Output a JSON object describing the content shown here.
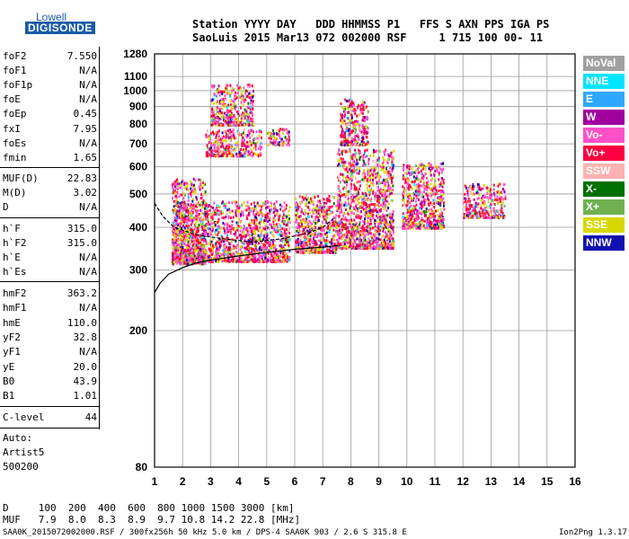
{
  "logo": {
    "line1": "Lowell",
    "line2": "DIGISONDE"
  },
  "header": {
    "line1": "Station YYYY DAY   DDD HHMMSS P1   FFS S AXN PPS IGA PS",
    "line2": "SaoLuis 2015 Mar13 072 002000 RSF     1 715 100 00- 11"
  },
  "params": [
    {
      "label": "foF2",
      "value": "7.550"
    },
    {
      "label": "foF1",
      "value": "N/A"
    },
    {
      "label": "foF1p",
      "value": "N/A"
    },
    {
      "label": "foE",
      "value": "N/A"
    },
    {
      "label": "foEp",
      "value": "0.45"
    },
    {
      "label": "fxI",
      "value": "7.95"
    },
    {
      "label": "foEs",
      "value": "N/A"
    },
    {
      "label": "fmin",
      "value": "1.65"
    },
    {
      "label": "MUF(D)",
      "value": "22.83"
    },
    {
      "label": "M(D)",
      "value": "3.02"
    },
    {
      "label": "D",
      "value": "N/A"
    },
    {
      "label": "h`F",
      "value": "315.0"
    },
    {
      "label": "h`F2",
      "value": "315.0"
    },
    {
      "label": "h`E",
      "value": "N/A"
    },
    {
      "label": "h`Es",
      "value": "N/A"
    },
    {
      "label": "hmF2",
      "value": "363.2"
    },
    {
      "label": "hmF1",
      "value": "N/A"
    },
    {
      "label": "hmE",
      "value": "110.0"
    },
    {
      "label": "yF2",
      "value": "32.8"
    },
    {
      "label": "yF1",
      "value": "N/A"
    },
    {
      "label": "yE",
      "value": "20.0"
    },
    {
      "label": "B0",
      "value": "43.9"
    },
    {
      "label": "B1",
      "value": "1.01"
    },
    {
      "label": "C-level",
      "value": "44"
    }
  ],
  "auto": {
    "line1": "Auto:",
    "line2": "Artist5",
    "line3": "500200"
  },
  "legend": [
    {
      "label": "NoVal",
      "bg": "#a0a0a0",
      "fg": "#ffffff"
    },
    {
      "label": "NNE",
      "bg": "#00e5ff",
      "fg": "#ffffff"
    },
    {
      "label": "E",
      "bg": "#2ea8ff",
      "fg": "#ffffff"
    },
    {
      "label": "W",
      "bg": "#a000a0",
      "fg": "#ffffff"
    },
    {
      "label": "Vo-",
      "bg": "#ff50c8",
      "fg": "#ffffff"
    },
    {
      "label": "Vo+",
      "bg": "#ff0040",
      "fg": "#ffffff"
    },
    {
      "label": "SSW",
      "bg": "#ffb0b0",
      "fg": "#ffffff"
    },
    {
      "label": "X-",
      "bg": "#007000",
      "fg": "#ffffff"
    },
    {
      "label": "X+",
      "bg": "#70b050",
      "fg": "#ffffff"
    },
    {
      "label": "SSE",
      "bg": "#d8d800",
      "fg": "#ffffff"
    },
    {
      "label": "NNW",
      "bg": "#1010b0",
      "fg": "#ffffff"
    }
  ],
  "bottom": {
    "d_row": "D     100  200  400  600  800 1000 1500 3000 [km]",
    "muf_row": "MUF   7.9  8.0  8.3  8.9  9.7 10.8 14.2 22.8 [MHz]",
    "footer_left": "SAA0K_2015072002000.RSF / 300fx256h 50 kHz 5.0 km / DPS-4 SAA0K 903 / 2.6 S 315.8 E",
    "footer_right": "Ion2Png 1.3.17"
  },
  "chart_data": {
    "type": "scatter",
    "xlabel": "",
    "ylabel": "",
    "xlim": [
      1,
      16
    ],
    "ylim": [
      80,
      1280
    ],
    "y_scale": "log",
    "x_ticks": [
      1,
      2,
      3,
      4,
      5,
      6,
      7,
      8,
      9,
      10,
      11,
      12,
      13,
      14,
      15,
      16
    ],
    "y_ticks": [
      80,
      200,
      300,
      400,
      500,
      600,
      700,
      800,
      900,
      1000,
      1100,
      1280
    ],
    "grid": true,
    "traces": [
      {
        "name": "O-trace virtual height (h'f)",
        "x": [
          1.0,
          1.2,
          1.5,
          2.0,
          2.5,
          3.0,
          4.0,
          5.0,
          6.0,
          7.0,
          7.55
        ],
        "y": [
          258,
          275,
          292,
          305,
          315,
          321,
          330,
          338,
          345,
          350,
          354
        ]
      },
      {
        "name": "Model profile",
        "x": [
          1.0,
          1.3,
          1.7,
          2.5,
          3.5,
          4.5,
          5.5,
          6.5,
          7.0,
          7.4
        ],
        "y": [
          470,
          430,
          400,
          380,
          370,
          362,
          370,
          385,
          400,
          425
        ]
      }
    ],
    "clusters": [
      {
        "x": [
          1.6,
          5.8
        ],
        "y": [
          320,
          480
        ]
      },
      {
        "x": [
          1.6,
          2.8
        ],
        "y": [
          315,
          560
        ]
      },
      {
        "x": [
          2.8,
          4.8
        ],
        "y": [
          650,
          780
        ]
      },
      {
        "x": [
          5.0,
          5.8
        ],
        "y": [
          700,
          780
        ]
      },
      {
        "x": [
          3.0,
          4.5
        ],
        "y": [
          800,
          1050
        ]
      },
      {
        "x": [
          6.0,
          7.5
        ],
        "y": [
          340,
          500
        ]
      },
      {
        "x": [
          7.5,
          9.5
        ],
        "y": [
          350,
          680
        ]
      },
      {
        "x": [
          7.6,
          8.6
        ],
        "y": [
          700,
          950
        ]
      },
      {
        "x": [
          9.8,
          11.3
        ],
        "y": [
          400,
          620
        ]
      },
      {
        "x": [
          12.0,
          13.5
        ],
        "y": [
          430,
          540
        ]
      }
    ]
  }
}
